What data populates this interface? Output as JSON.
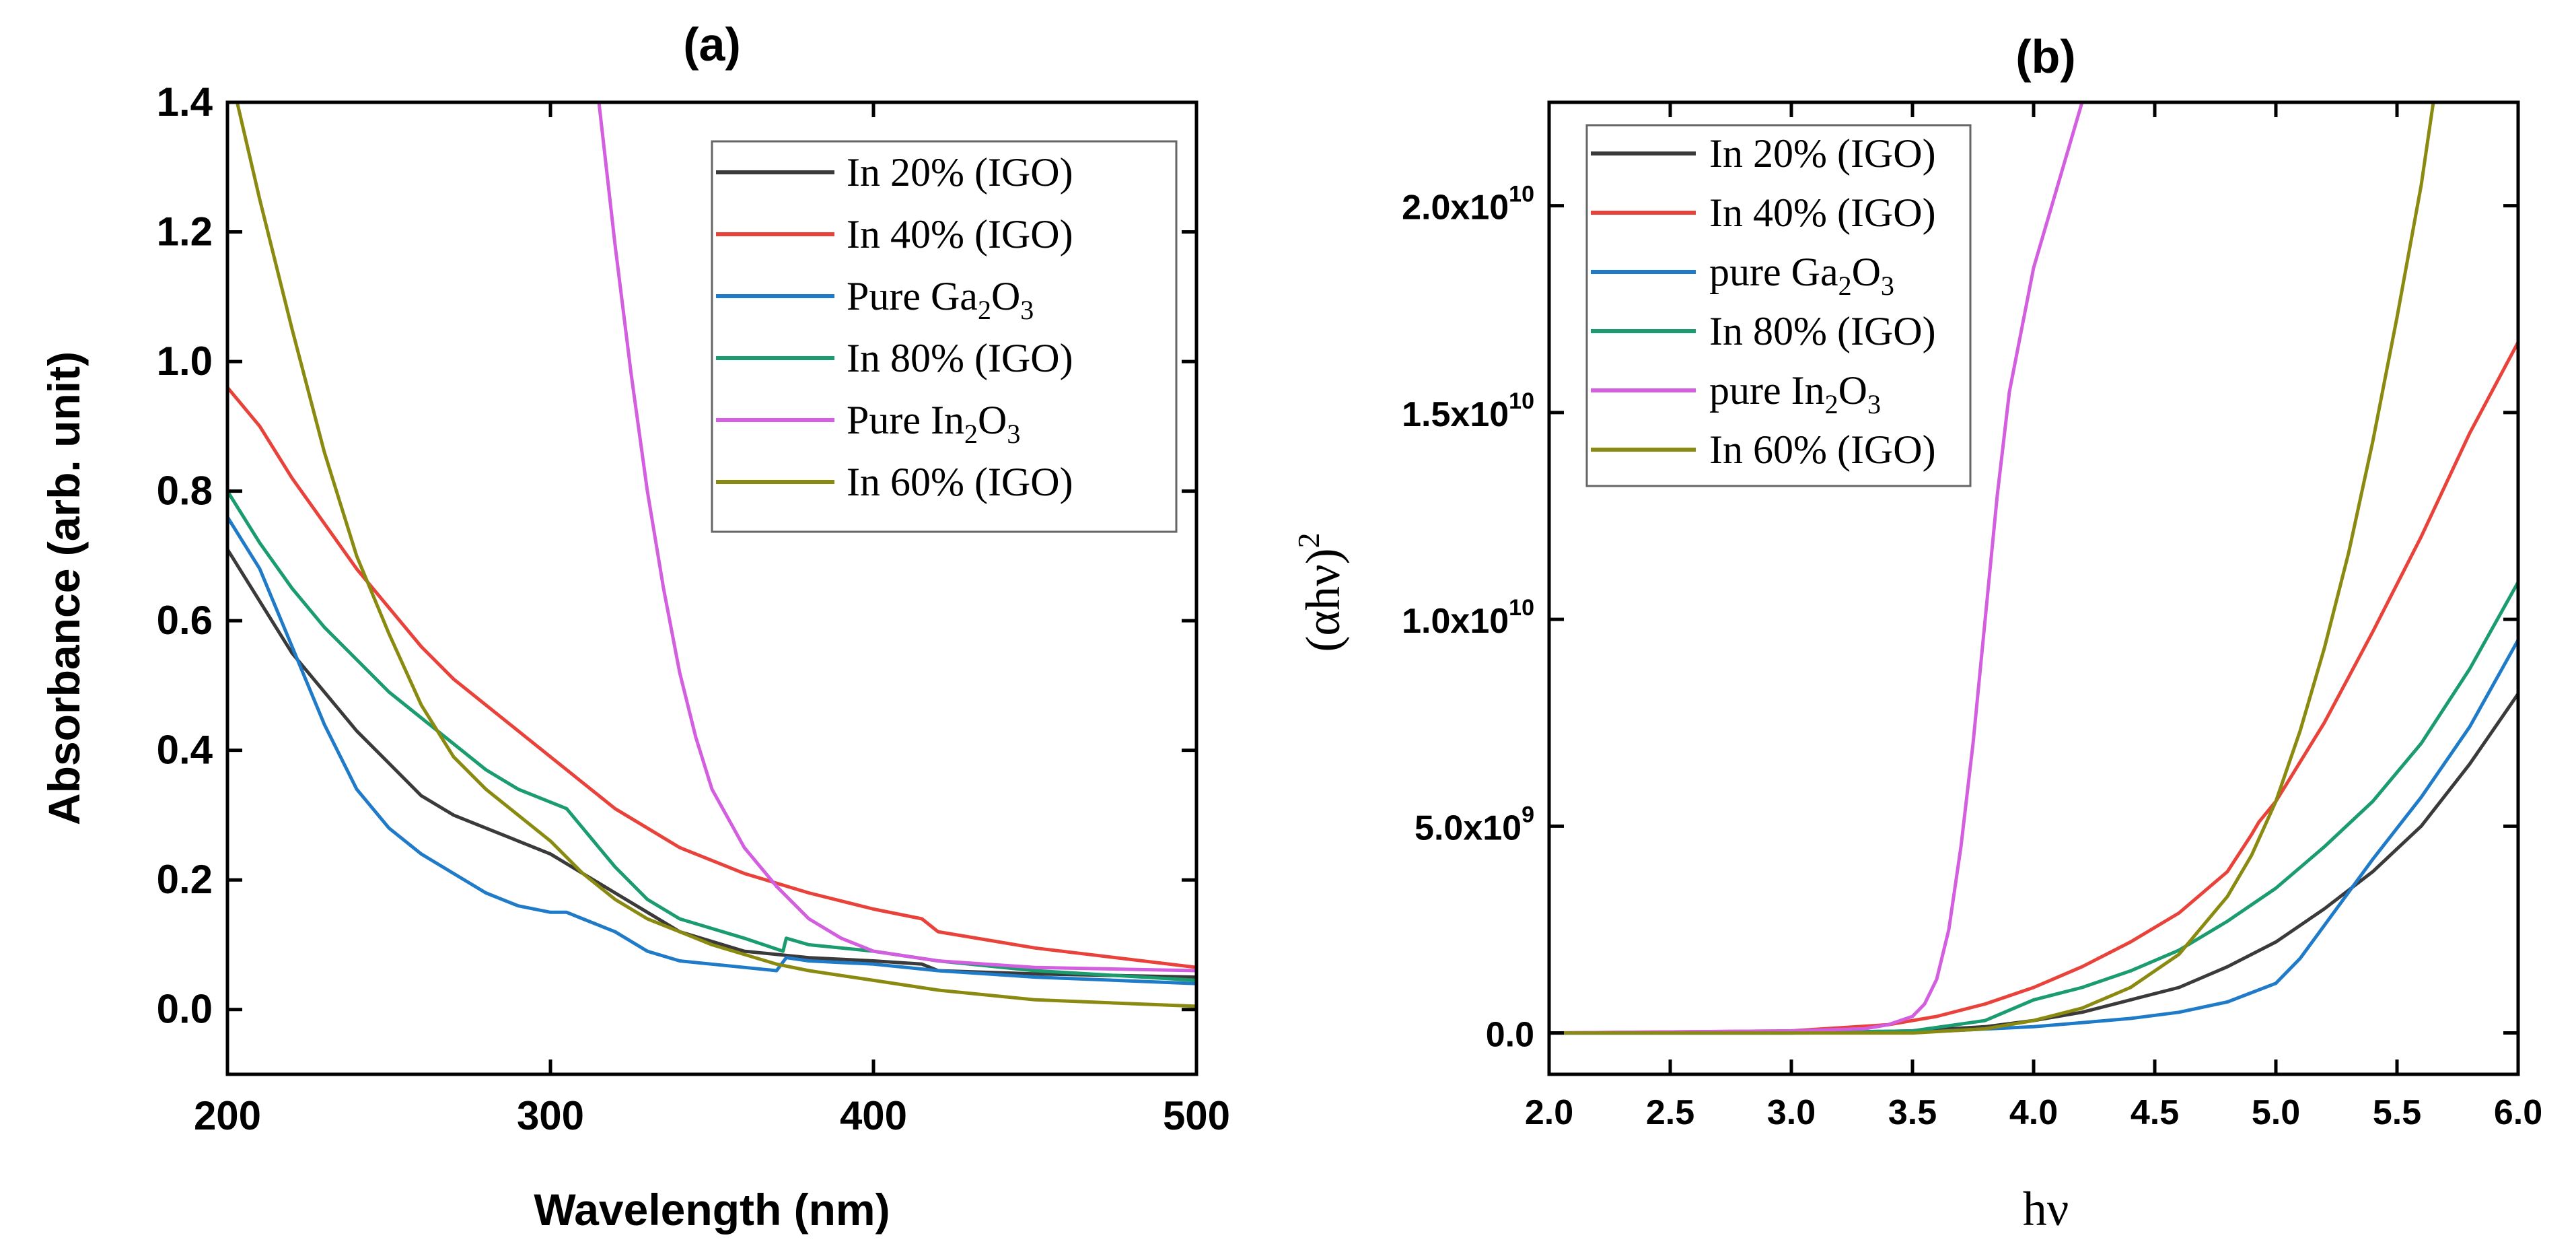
{
  "chart_data": [
    {
      "type": "line",
      "panel_label": "(a)",
      "xlabel": "Wavelength (nm)",
      "ylabel": "Absorbance (arb. unit)",
      "xlim": [
        200,
        500
      ],
      "ylim": [
        -0.1,
        1.4
      ],
      "xticks": [
        200,
        300,
        400,
        500
      ],
      "xtick_labels": [
        "200",
        "300",
        "400",
        "500"
      ],
      "yticks": [
        0.0,
        0.2,
        0.4,
        0.6,
        0.8,
        1.0,
        1.2,
        1.4
      ],
      "ytick_labels": [
        "0.0",
        "0.2",
        "0.4",
        "0.6",
        "0.8",
        "1.0",
        "1.2",
        "1.4"
      ],
      "legend_position": "top-right",
      "series": [
        {
          "name": "In 20% (IGO)",
          "label_parts": [
            "In 20% (IGO)"
          ],
          "color": "#3a3a3a",
          "x": [
            200,
            210,
            220,
            230,
            240,
            250,
            260,
            270,
            280,
            290,
            300,
            310,
            320,
            330,
            340,
            360,
            380,
            400,
            415,
            420,
            450,
            500
          ],
          "y": [
            0.71,
            0.63,
            0.55,
            0.49,
            0.43,
            0.38,
            0.33,
            0.3,
            0.28,
            0.26,
            0.24,
            0.21,
            0.18,
            0.15,
            0.12,
            0.09,
            0.08,
            0.075,
            0.07,
            0.06,
            0.055,
            0.05
          ]
        },
        {
          "name": "In 40% (IGO)",
          "label_parts": [
            "In 40% (IGO)"
          ],
          "color": "#e8423a",
          "x": [
            200,
            210,
            220,
            230,
            240,
            250,
            260,
            270,
            280,
            290,
            300,
            310,
            320,
            330,
            340,
            360,
            380,
            400,
            415,
            420,
            450,
            500
          ],
          "y": [
            0.96,
            0.9,
            0.82,
            0.75,
            0.68,
            0.62,
            0.56,
            0.51,
            0.47,
            0.43,
            0.39,
            0.35,
            0.31,
            0.28,
            0.25,
            0.21,
            0.18,
            0.155,
            0.14,
            0.12,
            0.095,
            0.065
          ]
        },
        {
          "name": "Pure Ga2O3",
          "label_parts": [
            "Pure Ga",
            "2",
            "O",
            "3"
          ],
          "color": "#1f7bc8",
          "x": [
            200,
            210,
            220,
            230,
            240,
            250,
            260,
            270,
            280,
            290,
            300,
            305,
            310,
            320,
            330,
            340,
            360,
            370,
            373,
            380,
            400,
            420,
            450,
            500
          ],
          "y": [
            0.76,
            0.68,
            0.56,
            0.44,
            0.34,
            0.28,
            0.24,
            0.21,
            0.18,
            0.16,
            0.15,
            0.15,
            0.14,
            0.12,
            0.09,
            0.075,
            0.065,
            0.06,
            0.08,
            0.075,
            0.07,
            0.06,
            0.05,
            0.04
          ]
        },
        {
          "name": "In 80% (IGO)",
          "label_parts": [
            "In 80% (IGO)"
          ],
          "color": "#1a9c6e",
          "x": [
            200,
            210,
            220,
            230,
            240,
            250,
            260,
            270,
            280,
            290,
            300,
            305,
            310,
            320,
            330,
            340,
            360,
            372,
            373,
            380,
            400,
            420,
            450,
            500
          ],
          "y": [
            0.8,
            0.72,
            0.65,
            0.59,
            0.54,
            0.49,
            0.45,
            0.41,
            0.37,
            0.34,
            0.32,
            0.31,
            0.28,
            0.22,
            0.17,
            0.14,
            0.11,
            0.09,
            0.11,
            0.1,
            0.09,
            0.075,
            0.06,
            0.045
          ]
        },
        {
          "name": "Pure In2O3",
          "label_parts": [
            "Pure In",
            "2",
            "O",
            "3"
          ],
          "color": "#d35ee0",
          "x": [
            315,
            320,
            325,
            330,
            335,
            340,
            345,
            350,
            360,
            370,
            380,
            390,
            400,
            420,
            450,
            500
          ],
          "y": [
            1.4,
            1.18,
            0.98,
            0.8,
            0.65,
            0.52,
            0.42,
            0.34,
            0.25,
            0.19,
            0.14,
            0.11,
            0.09,
            0.075,
            0.065,
            0.06
          ]
        },
        {
          "name": "In 60% (IGO)",
          "label_parts": [
            "In 60% (IGO)"
          ],
          "color": "#8a8a10",
          "x": [
            203,
            210,
            220,
            230,
            240,
            250,
            260,
            270,
            280,
            290,
            300,
            310,
            320,
            330,
            340,
            350,
            360,
            370,
            380,
            400,
            420,
            450,
            500
          ],
          "y": [
            1.4,
            1.25,
            1.05,
            0.86,
            0.7,
            0.58,
            0.47,
            0.39,
            0.34,
            0.3,
            0.26,
            0.21,
            0.17,
            0.14,
            0.12,
            0.1,
            0.085,
            0.07,
            0.06,
            0.045,
            0.03,
            0.015,
            0.005
          ]
        }
      ]
    },
    {
      "type": "line",
      "panel_label": "(b)",
      "xlabel": "hν",
      "ylabel_parts": [
        "(αhν)",
        "2"
      ],
      "xlim": [
        2.0,
        6.0
      ],
      "ylim": [
        -1000000000.0,
        22500000000.0
      ],
      "xticks": [
        2.0,
        2.5,
        3.0,
        3.5,
        4.0,
        4.5,
        5.0,
        5.5,
        6.0
      ],
      "xtick_labels": [
        "2.0",
        "2.5",
        "3.0",
        "3.5",
        "4.0",
        "4.5",
        "5.0",
        "5.5",
        "6.0"
      ],
      "yticks": [
        0,
        5000000000.0,
        10000000000.0,
        15000000000.0,
        20000000000.0
      ],
      "ytick_mantissa": [
        "0.0",
        "5.0x10",
        "1.0x10",
        "1.5x10",
        "2.0x10"
      ],
      "ytick_exponent": [
        "",
        "9",
        "10",
        "10",
        "10"
      ],
      "legend_position": "top-left",
      "series": [
        {
          "name": "In 20% (IGO)",
          "label_parts": [
            "In 20% (IGO)"
          ],
          "color": "#3a3a3a",
          "x": [
            2.0,
            3.0,
            3.5,
            3.8,
            4.0,
            4.2,
            4.4,
            4.6,
            4.8,
            5.0,
            5.2,
            5.4,
            5.6,
            5.8,
            6.0
          ],
          "y": [
            0,
            0,
            50000000.0,
            150000000.0,
            300000000.0,
            500000000.0,
            800000000.0,
            1100000000.0,
            1600000000.0,
            2200000000.0,
            3000000000.0,
            3900000000.0,
            5000000000.0,
            6500000000.0,
            8200000000.0
          ]
        },
        {
          "name": "In 40% (IGO)",
          "label_parts": [
            "In 40% (IGO)"
          ],
          "color": "#e8423a",
          "x": [
            2.0,
            3.0,
            3.4,
            3.6,
            3.8,
            4.0,
            4.2,
            4.4,
            4.6,
            4.8,
            4.9,
            4.93,
            5.0,
            5.2,
            5.4,
            5.6,
            5.8,
            6.0
          ],
          "y": [
            0,
            50000000.0,
            200000000.0,
            400000000.0,
            700000000.0,
            1100000000.0,
            1600000000.0,
            2200000000.0,
            2900000000.0,
            3900000000.0,
            4800000000.0,
            5100000000.0,
            5600000000.0,
            7500000000.0,
            9700000000.0,
            12000000000.0,
            14500000000.0,
            16700000000.0
          ]
        },
        {
          "name": "pure Ga2O3",
          "label_parts": [
            "pure Ga",
            "2",
            "O",
            "3"
          ],
          "color": "#1f7bc8",
          "x": [
            2.0,
            3.0,
            3.5,
            4.0,
            4.2,
            4.4,
            4.6,
            4.8,
            5.0,
            5.1,
            5.2,
            5.4,
            5.6,
            5.8,
            6.0
          ],
          "y": [
            0,
            0,
            10000000.0,
            150000000.0,
            250000000.0,
            350000000.0,
            500000000.0,
            750000000.0,
            1200000000.0,
            1800000000.0,
            2600000000.0,
            4200000000.0,
            5700000000.0,
            7400000000.0,
            9500000000.0
          ]
        },
        {
          "name": "In 80% (IGO)",
          "label_parts": [
            "In 80% (IGO)"
          ],
          "color": "#1a9c6e",
          "x": [
            2.0,
            3.0,
            3.5,
            3.8,
            4.0,
            4.2,
            4.4,
            4.6,
            4.8,
            5.0,
            5.2,
            5.4,
            5.6,
            5.8,
            6.0
          ],
          "y": [
            0,
            0,
            50000000.0,
            300000000.0,
            800000000.0,
            1100000000.0,
            1500000000.0,
            2000000000.0,
            2700000000.0,
            3500000000.0,
            4500000000.0,
            5600000000.0,
            7000000000.0,
            8800000000.0,
            10900000000.0
          ]
        },
        {
          "name": "pure In2O3",
          "label_parts": [
            "pure In",
            "2",
            "O",
            "3"
          ],
          "color": "#d35ee0",
          "x": [
            2.0,
            3.0,
            3.3,
            3.4,
            3.5,
            3.55,
            3.6,
            3.65,
            3.7,
            3.75,
            3.8,
            3.85,
            3.9,
            4.0,
            4.1,
            4.2
          ],
          "y": [
            0,
            50000000.0,
            100000000.0,
            200000000.0,
            400000000.0,
            700000000.0,
            1300000000.0,
            2500000000.0,
            4500000000.0,
            7000000000.0,
            10000000000.0,
            13000000000.0,
            15500000000.0,
            18500000000.0,
            20500000000.0,
            22500000000.0
          ]
        },
        {
          "name": "In 60% (IGO)",
          "label_parts": [
            "In 60% (IGO)"
          ],
          "color": "#8a8a10",
          "x": [
            2.0,
            3.5,
            3.8,
            4.0,
            4.2,
            4.4,
            4.6,
            4.8,
            4.9,
            5.0,
            5.1,
            5.2,
            5.3,
            5.4,
            5.5,
            5.6,
            5.65
          ],
          "y": [
            0,
            0,
            100000000.0,
            300000000.0,
            600000000.0,
            1100000000.0,
            1900000000.0,
            3300000000.0,
            4300000000.0,
            5600000000.0,
            7300000000.0,
            9300000000.0,
            11600000000.0,
            14300000000.0,
            17300000000.0,
            20500000000.0,
            22500000000.0
          ]
        }
      ]
    }
  ]
}
